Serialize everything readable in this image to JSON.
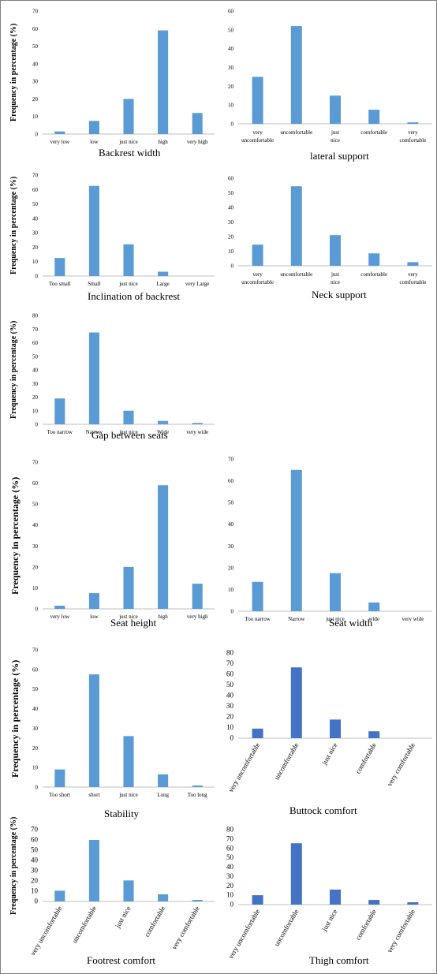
{
  "chart_data": [
    {
      "type": "bar",
      "title": "Backrest width",
      "ylabel": "Frequency in percentage (%)",
      "categories": [
        "very low",
        "low",
        "just nice",
        "high",
        "very high"
      ],
      "values": [
        1.5,
        7.5,
        20,
        59,
        12
      ],
      "ylim": [
        0,
        70
      ],
      "yticks": [
        0,
        10,
        20,
        30,
        40,
        50,
        60,
        70
      ],
      "color": "#5B9BD5",
      "grid": false,
      "legend": "none"
    },
    {
      "type": "bar",
      "title": "lateral support",
      "ylabel": "",
      "categories": [
        "very uncomfortable",
        "uncomfortable",
        "just nice",
        "comfortable",
        "very comfortable"
      ],
      "values": [
        25,
        52,
        15,
        7.5,
        0.8
      ],
      "ylim": [
        0,
        60
      ],
      "yticks": [
        0,
        10,
        20,
        30,
        40,
        50,
        60
      ],
      "color": "#5B9BD5",
      "grid": false,
      "legend": "none"
    },
    {
      "type": "bar",
      "title": "Inclination of backrest",
      "ylabel": "Frequency in percentage (%)",
      "categories": [
        "Too small",
        "Small",
        "just nice",
        "Large",
        "very Large"
      ],
      "values": [
        12.5,
        62.5,
        22,
        3,
        0
      ],
      "ylim": [
        0,
        70
      ],
      "yticks": [
        0,
        10,
        20,
        30,
        40,
        50,
        60,
        70
      ],
      "color": "#5B9BD5",
      "grid": false,
      "legend": "none"
    },
    {
      "type": "bar",
      "title": "Neck support",
      "ylabel": "",
      "categories": [
        "very uncomfortable",
        "uncomfortable",
        "just nice",
        "comfortable",
        "very comfortable"
      ],
      "values": [
        14.5,
        54.5,
        21,
        8.5,
        2.5
      ],
      "ylim": [
        0,
        60
      ],
      "yticks": [
        0,
        10,
        20,
        30,
        40,
        50,
        60
      ],
      "color": "#5B9BD5",
      "grid": false,
      "legend": "none"
    },
    {
      "type": "bar",
      "title": "Gap between seats",
      "ylabel": "Frequency in percentage (%)",
      "categories": [
        "Too narrow",
        "Narrow",
        "just nice",
        "Wide",
        "very wide"
      ],
      "values": [
        19,
        67.5,
        10,
        2.5,
        1
      ],
      "ylim": [
        0,
        80
      ],
      "yticks": [
        0,
        10,
        20,
        30,
        40,
        50,
        60,
        70,
        80
      ],
      "color": "#5B9BD5",
      "grid": false,
      "legend": "none"
    },
    {
      "type": "bar",
      "title": "Seat height",
      "ylabel": "Frequency in percentage (%)",
      "categories": [
        "very low",
        "low",
        "just nice",
        "high",
        "very high"
      ],
      "values": [
        1.5,
        7.5,
        20,
        59,
        12
      ],
      "ylim": [
        0,
        70
      ],
      "yticks": [
        0,
        10,
        20,
        30,
        40,
        50,
        60,
        70
      ],
      "color": "#5B9BD5",
      "grid": false,
      "legend": "none"
    },
    {
      "type": "bar",
      "title": "Seat width",
      "ylabel": "",
      "categories": [
        "Too narrow",
        "Narrow",
        "just nice",
        "wide",
        "very wide"
      ],
      "values": [
        13.5,
        65,
        17.5,
        4,
        0
      ],
      "ylim": [
        0,
        70
      ],
      "yticks": [
        0,
        10,
        20,
        30,
        40,
        50,
        60,
        70
      ],
      "color": "#5B9BD5",
      "grid": false,
      "legend": "none"
    },
    {
      "type": "bar",
      "title": "Stability",
      "ylabel": "Frequency in percentage (%)",
      "categories": [
        "Too short",
        "short",
        "just nice",
        "Long",
        "Too long"
      ],
      "values": [
        9,
        57.5,
        26,
        6.5,
        0.8
      ],
      "ylim": [
        0,
        70
      ],
      "yticks": [
        0,
        10,
        20,
        30,
        40,
        50,
        60,
        70
      ],
      "color": "#5B9BD5",
      "grid": false,
      "legend": "none"
    },
    {
      "type": "bar",
      "title": "Buttock comfort",
      "ylabel": "",
      "categories": [
        "very uncomfortable",
        "uncomfortable",
        "just nice",
        "comfortable",
        "very comfortable"
      ],
      "values": [
        9,
        66.5,
        17.5,
        6.5,
        0
      ],
      "ylim": [
        0,
        80
      ],
      "yticks": [
        0,
        10,
        20,
        30,
        40,
        50,
        60,
        70,
        80
      ],
      "color": "#4472C4",
      "grid": false,
      "legend": "none"
    },
    {
      "type": "bar",
      "title": "Footrest comfort",
      "ylabel": "Frequency in percentage (%)",
      "categories": [
        "very uncomfortable",
        "uncomfortable",
        "just nice",
        "comfortable",
        "very comfortable"
      ],
      "values": [
        10.5,
        60,
        20.5,
        7,
        1.5
      ],
      "ylim": [
        0,
        70
      ],
      "yticks": [
        0,
        10,
        20,
        30,
        40,
        50,
        60,
        70
      ],
      "color": "#5B9BD5",
      "grid": false,
      "legend": "none"
    },
    {
      "type": "bar",
      "title": "Thigh comfort",
      "ylabel": "",
      "categories": [
        "very uncomfortable",
        "uncomfortable",
        "just nice",
        "comfortable",
        "very comfortable"
      ],
      "values": [
        10,
        65.5,
        16,
        5,
        2.5
      ],
      "ylim": [
        0,
        80
      ],
      "yticks": [
        0,
        10,
        20,
        30,
        40,
        50,
        60,
        70,
        80
      ],
      "color": "#4472C4",
      "grid": false,
      "legend": "none"
    }
  ]
}
